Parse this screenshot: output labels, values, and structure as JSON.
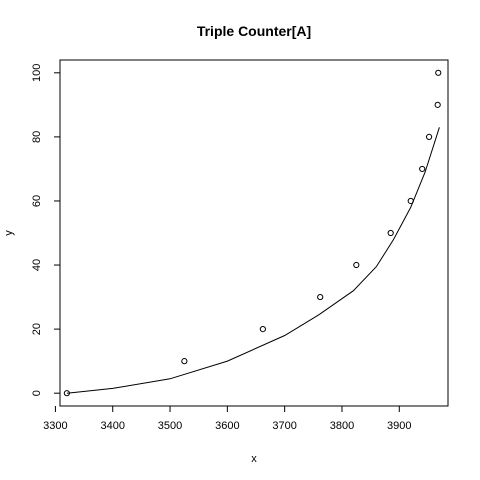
{
  "chart_data": {
    "type": "scatter",
    "title": "Triple Counter[A]",
    "xlabel": "x",
    "ylabel": "y",
    "xlim": [
      3308,
      3985
    ],
    "ylim": [
      -4,
      104
    ],
    "x_ticks": [
      "3300",
      "3400",
      "3500",
      "3600",
      "3700",
      "3800",
      "3900"
    ],
    "y_ticks": [
      "0",
      "20",
      "40",
      "60",
      "80",
      "100"
    ],
    "grid": false,
    "legend": "none",
    "points": {
      "x": [
        3320,
        3525,
        3662,
        3762,
        3825,
        3885,
        3920,
        3940,
        3952,
        3967,
        3968
      ],
      "y": [
        0,
        10,
        20,
        30,
        40,
        50,
        60,
        70,
        80,
        90,
        100
      ]
    },
    "fitted_curve": {
      "x": [
        3320,
        3400,
        3500,
        3600,
        3700,
        3760,
        3820,
        3860,
        3890,
        3920,
        3945,
        3970
      ],
      "y": [
        0,
        1.5,
        4.5,
        10,
        18,
        24.5,
        32,
        39.5,
        48,
        58,
        69,
        83
      ]
    }
  }
}
